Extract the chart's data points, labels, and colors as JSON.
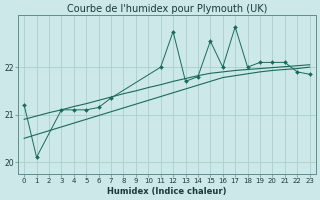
{
  "title": "Courbe de l'humidex pour Plymouth (UK)",
  "xlabel": "Humidex (Indice chaleur)",
  "bg_color": "#cce8e8",
  "grid_color": "#aad0d0",
  "line_color": "#1a6a5a",
  "xlim": [
    -0.5,
    23.5
  ],
  "ylim": [
    19.75,
    23.1
  ],
  "yticks": [
    20,
    21,
    22
  ],
  "xtick_labels": [
    "0",
    "1",
    "2",
    "3",
    "4",
    "5",
    "6",
    "7",
    "8",
    "9",
    "10",
    "11",
    "12",
    "13",
    "14",
    "15",
    "16",
    "17",
    "18",
    "19",
    "20",
    "21",
    "22",
    "23"
  ],
  "series1_x": [
    0,
    1,
    3,
    4,
    5,
    6,
    7,
    11,
    12,
    13,
    14,
    15,
    16,
    17,
    18,
    19,
    20,
    21,
    22,
    23
  ],
  "series1_y": [
    21.2,
    20.1,
    21.1,
    21.1,
    21.1,
    21.15,
    21.35,
    22.0,
    22.75,
    21.7,
    21.8,
    22.55,
    22.0,
    22.85,
    22.0,
    22.1,
    22.1,
    22.1,
    21.9,
    21.85
  ],
  "series2_x": [
    0,
    1,
    2,
    3,
    4,
    5,
    6,
    7,
    8,
    9,
    10,
    11,
    12,
    13,
    14,
    15,
    16,
    17,
    18,
    19,
    20,
    21,
    22,
    23
  ],
  "series2_y": [
    20.5,
    20.58,
    20.66,
    20.74,
    20.82,
    20.9,
    20.98,
    21.06,
    21.14,
    21.22,
    21.3,
    21.38,
    21.46,
    21.54,
    21.62,
    21.7,
    21.78,
    21.82,
    21.86,
    21.9,
    21.93,
    21.95,
    21.97,
    22.0
  ],
  "series3_x": [
    0,
    1,
    2,
    3,
    4,
    5,
    6,
    7,
    8,
    9,
    10,
    11,
    12,
    13,
    14,
    15,
    16,
    17,
    18,
    19,
    20,
    21,
    22,
    23
  ],
  "series3_y": [
    20.9,
    20.97,
    21.04,
    21.1,
    21.17,
    21.23,
    21.3,
    21.37,
    21.44,
    21.5,
    21.57,
    21.63,
    21.7,
    21.76,
    21.82,
    21.87,
    21.9,
    21.93,
    21.95,
    21.97,
    21.99,
    22.01,
    22.03,
    22.05
  ],
  "title_fontsize": 7,
  "xlabel_fontsize": 6,
  "tick_fontsize": 5
}
